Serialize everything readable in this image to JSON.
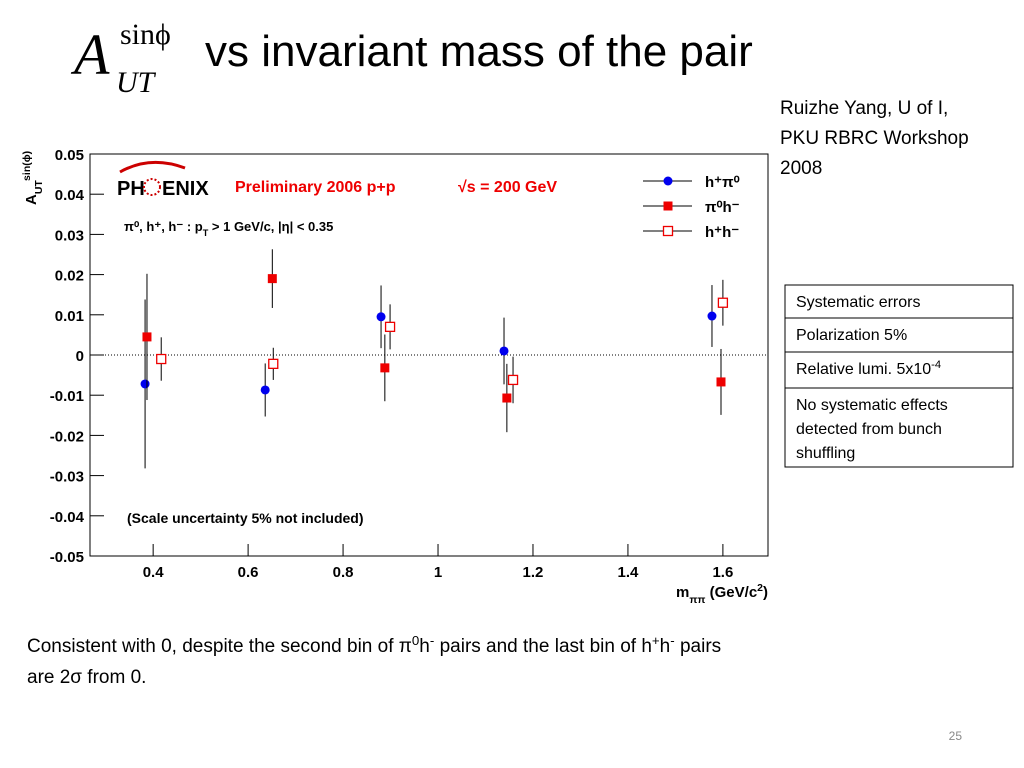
{
  "slide": {
    "title": {
      "main": "A",
      "sup": "sinϕ",
      "sub": "UT",
      "rest": "vs invariant mass of the pair"
    },
    "author": [
      "Ruizhe Yang, U of I,",
      "PKU RBRC Workshop",
      "2008"
    ],
    "table": [
      [
        "Systematic errors"
      ],
      [
        "Polarization 5%"
      ],
      [
        "Relative lumi. 5x10",
        {
          "text": "-4",
          "style": "sup"
        }
      ],
      [
        "No systematic effects",
        "detected from bunch",
        "shuffling"
      ]
    ],
    "caption": [
      [
        "Consistent with 0, despite the second bin of π",
        {
          "text": "0",
          "style": "sup"
        },
        "h",
        {
          "text": "-",
          "style": "sup"
        },
        " pairs and the last bin of h",
        {
          "text": "+",
          "style": "sup"
        },
        "h",
        {
          "text": "-",
          "style": "sup"
        },
        " pairs"
      ],
      [
        "are 2σ from 0."
      ]
    ],
    "page_number": "25"
  },
  "chart_data": {
    "type": "errorbar",
    "ylabel": [
      "A",
      {
        "text": "UT",
        "style": "sub"
      },
      {
        "text": "sin(ϕ)",
        "style": "sup"
      }
    ],
    "xlabel": [
      "m",
      {
        "text": "ππ",
        "style": "sub"
      },
      " (GeV/c",
      {
        "text": "2",
        "style": "sup"
      },
      ")"
    ],
    "annotations": {
      "logo": [
        "PH",
        "ENIX"
      ],
      "preliminary": "Preliminary 2006 p+p",
      "energy": "√s = 200 GeV",
      "cuts": [
        "π⁰, h⁺, h⁻ : p",
        {
          "text": "T",
          "style": "sub"
        },
        " > 1 GeV/c, |η| < 0.35"
      ],
      "note": "(Scale uncertainty 5% not included)"
    },
    "xlim": [
      0.267,
      1.695
    ],
    "ylim": [
      -0.05,
      0.05
    ],
    "xticks": [
      0.4,
      0.6,
      0.8,
      1,
      1.2,
      1.4,
      1.6
    ],
    "yticks": [
      0.05,
      0.04,
      0.03,
      0.02,
      0.01,
      0,
      -0.01,
      -0.02,
      -0.03,
      -0.04,
      -0.05
    ],
    "zero_line": true,
    "series": [
      {
        "name": "h⁺π⁰",
        "color": "#0000ee",
        "marker": "circle",
        "x": [
          0.383,
          0.636,
          0.88,
          1.139,
          1.577
        ],
        "values": [
          -0.0072,
          -0.0087,
          0.0095,
          0.001,
          0.0097
        ],
        "errors": [
          0.021,
          0.0066,
          0.0078,
          0.0083,
          0.0077
        ]
      },
      {
        "name": "π⁰h⁻",
        "color": "#ee0000",
        "marker": "square",
        "x": [
          0.387,
          0.651,
          0.888,
          1.145,
          1.596
        ],
        "values": [
          0.0045,
          0.019,
          -0.0032,
          -0.0107,
          -0.0067
        ],
        "errors": [
          0.0157,
          0.0073,
          0.0083,
          0.0085,
          0.0082
        ]
      },
      {
        "name": "h⁺h⁻",
        "color": "#ee0000",
        "marker": "open-square",
        "x": [
          0.417,
          0.653,
          0.899,
          1.158,
          1.6
        ],
        "values": [
          -0.001,
          -0.0022,
          0.007,
          -0.0062,
          0.013
        ],
        "errors": [
          0.0054,
          0.004,
          0.0056,
          0.0058,
          0.0057
        ]
      }
    ]
  }
}
